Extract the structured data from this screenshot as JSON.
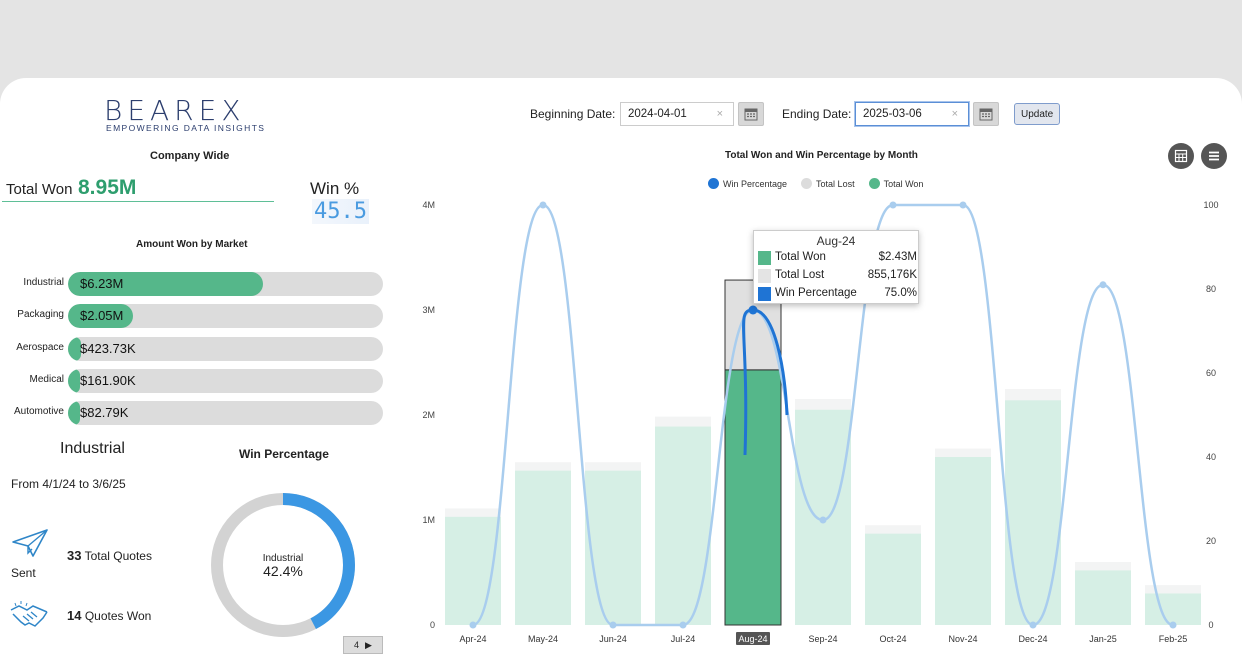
{
  "logo": {
    "name": "BEAREX",
    "tagline": "EMPOWERING DATA INSIGHTS"
  },
  "company_wide": {
    "title": "Company Wide",
    "total_won_label": "Total Won",
    "total_won_value": "8.95M",
    "win_pct_label": "Win %",
    "win_pct_value": "45.5"
  },
  "markets": {
    "title": "Amount Won by Market",
    "items": [
      {
        "name": "Industrial",
        "value": "$6.23M",
        "fraction": 0.62
      },
      {
        "name": "Packaging",
        "value": "$2.05M",
        "fraction": 0.205
      },
      {
        "name": "Aerospace",
        "value": "$423.73K",
        "fraction": 0.042
      },
      {
        "name": "Medical",
        "value": "$161.90K",
        "fraction": 0.016
      },
      {
        "name": "Automotive",
        "value": "$82.79K",
        "fraction": 0.008
      }
    ]
  },
  "detail": {
    "title": "Industrial",
    "range": "From 4/1/24 to 3/6/25",
    "sent_label": "Sent",
    "total_quotes_count": "33",
    "total_quotes_label": "Total Quotes",
    "quotes_won_count": "14",
    "quotes_won_label": "Quotes Won"
  },
  "donut": {
    "title": "Win Percentage",
    "label": "Industrial",
    "value_text": "42.4%",
    "fraction": 0.424,
    "page": "4"
  },
  "filters": {
    "begin_label": "Beginning Date:",
    "begin_value": "2024-04-01",
    "end_label": "Ending Date:",
    "end_value": "2025-03-06",
    "update_label": "Update",
    "clear": "×"
  },
  "colors": {
    "won": "#55b78a",
    "won_light": "#d6efe5",
    "lost": "#e0e0e0",
    "win_pct": "#1f74d4",
    "win_pct_light": "#a9cdee"
  },
  "chart_data": {
    "type": "bar",
    "title": "Total Won and Win Percentage by Month",
    "legend": [
      "Win Percentage",
      "Total Lost",
      "Total Won"
    ],
    "legend_position": "top",
    "categories": [
      "Apr-24",
      "May-24",
      "Jun-24",
      "Jul-24",
      "Aug-24",
      "Sep-24",
      "Oct-24",
      "Nov-24",
      "Dec-24",
      "Jan-25",
      "Feb-25"
    ],
    "y_left_ticks": [
      "0",
      "1M",
      "2M",
      "3M",
      "4M"
    ],
    "y_left_range": [
      0,
      4000000
    ],
    "y_right_ticks": [
      "0",
      "20",
      "40",
      "60",
      "80",
      "100"
    ],
    "y_right_range": [
      0,
      100
    ],
    "series": [
      {
        "name": "Total Won",
        "axis": "left",
        "values": [
          1030000,
          1470000,
          1470000,
          1890000,
          2430000,
          2050000,
          870000,
          1600000,
          2140000,
          520000,
          300000
        ]
      },
      {
        "name": "Total Lost",
        "axis": "left",
        "values": [
          0,
          0,
          0,
          0,
          855176,
          0,
          0,
          0,
          0,
          0,
          0
        ]
      },
      {
        "name": "Win Percentage",
        "axis": "right",
        "values": [
          0,
          100,
          0,
          0,
          75,
          25,
          100,
          100,
          0,
          81,
          0
        ]
      }
    ],
    "highlight_index": 4,
    "tooltip": {
      "title": "Aug-24",
      "rows": [
        {
          "name": "Total Won",
          "value": "$2.43M"
        },
        {
          "name": "Total Lost",
          "value": "855,176K"
        },
        {
          "name": "Win Percentage",
          "value": "75.0%"
        }
      ]
    }
  }
}
